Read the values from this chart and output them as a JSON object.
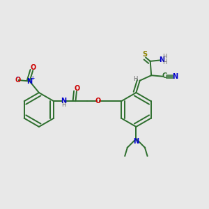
{
  "background_color": "#e8e8e8",
  "bond_color": "#2d6e2d",
  "atom_colors": {
    "O": "#cc0000",
    "N": "#0000cc",
    "S": "#8b8000",
    "H": "#666666"
  },
  "figsize": [
    3.0,
    3.0
  ],
  "dpi": 100,
  "lw": 1.4
}
